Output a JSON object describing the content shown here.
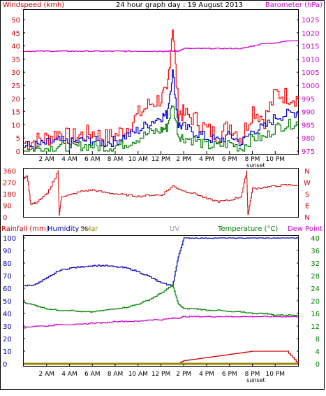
{
  "page_title": "24 hour graph day : 19 August 2013",
  "colors": {
    "wind_avg": "#0000cc",
    "wind_gust": "#ff0000",
    "wind_low": "#008000",
    "barometer": "#cc00cc",
    "direction": "#cc0000",
    "humidity": "#0000aa",
    "temperature": "#008000",
    "dewpoint": "#cc00cc",
    "rainfall": "#cc0000",
    "solar": "#998800",
    "uv": "#999999",
    "frame": "#000000"
  },
  "labels": {
    "windspeed": "Windspeed (kmh)",
    "barometer": "Barometer (hPa)",
    "rainfall": "Rainfall (mm)",
    "humidity": "Humidity %",
    "solar": "Solar",
    "uv": "UV",
    "temperature": "Temperature (°C)",
    "dewpoint": "Dew Point",
    "sunset": "sunset"
  },
  "x_ticks": [
    "2 AM",
    "4 AM",
    "6 AM",
    "8 AM",
    "10 AM",
    "12 PM",
    "2 PM",
    "4 PM",
    "6 PM",
    "8 PM",
    "10 PM"
  ],
  "chart_data": [
    {
      "type": "line",
      "title": "24 hour graph day : 19 August 2013",
      "ylabel": "Windspeed (kmh)",
      "y2label": "Barometer (hPa)",
      "ylim": [
        0,
        50
      ],
      "y2lim": [
        975,
        1025
      ],
      "yticks": [
        0,
        5,
        10,
        15,
        20,
        25,
        30,
        35,
        40,
        45,
        50
      ],
      "y2ticks": [
        975,
        980,
        985,
        990,
        995,
        1000,
        1005,
        1010,
        1015,
        1020,
        1025
      ],
      "x_hours": [
        0,
        1,
        2,
        3,
        4,
        5,
        6,
        7,
        8,
        9,
        10,
        11,
        12,
        12.5,
        13,
        13.5,
        14,
        15,
        16,
        17,
        18,
        19,
        20,
        21,
        22,
        23,
        24
      ],
      "series": [
        {
          "name": "gust",
          "values": [
            3,
            4,
            5,
            7,
            5,
            6,
            7,
            5,
            6,
            9,
            14,
            18,
            20,
            22,
            48,
            15,
            14,
            12,
            8,
            6,
            10,
            5,
            16,
            12,
            22,
            21,
            20
          ]
        },
        {
          "name": "average",
          "values": [
            2,
            2,
            3,
            4,
            3,
            4,
            4,
            3,
            4,
            6,
            8,
            11,
            13,
            14,
            30,
            10,
            9,
            7,
            5,
            4,
            6,
            3,
            8,
            9,
            13,
            14,
            15
          ]
        },
        {
          "name": "low",
          "values": [
            0,
            1,
            1,
            2,
            1,
            2,
            2,
            1,
            2,
            3,
            5,
            7,
            8,
            9,
            18,
            6,
            5,
            4,
            2,
            2,
            3,
            1,
            5,
            5,
            9,
            10,
            11
          ]
        },
        {
          "name": "barometer",
          "values": [
            1013,
            1013,
            1013,
            1013,
            1013,
            1013,
            1013,
            1013,
            1013,
            1013,
            1013,
            1013,
            1013,
            1013,
            1013,
            1013,
            1014,
            1014,
            1014,
            1014,
            1014,
            1014,
            1015,
            1016,
            1016,
            1017,
            1017
          ]
        }
      ]
    },
    {
      "type": "line",
      "ylim": [
        0,
        360
      ],
      "yticks": [
        0,
        90,
        180,
        270,
        360
      ],
      "y2ticks": [
        "N",
        "W",
        "S",
        "E",
        "N"
      ],
      "x_hours": [
        0,
        0.3,
        0.6,
        1,
        2,
        3,
        3.1,
        3.3,
        4,
        5,
        6,
        7,
        8,
        9,
        10,
        11,
        12,
        13,
        14,
        15,
        16,
        17,
        18,
        19,
        19.5,
        19.6,
        20,
        21,
        22,
        23,
        24
      ],
      "series": [
        {
          "name": "wind direction",
          "values": [
            300,
            320,
            100,
            110,
            180,
            360,
            20,
            160,
            170,
            200,
            210,
            190,
            180,
            170,
            160,
            170,
            170,
            240,
            200,
            180,
            140,
            120,
            130,
            160,
            360,
            20,
            220,
            230,
            240,
            250,
            245
          ]
        }
      ]
    },
    {
      "type": "line",
      "ylim": [
        0,
        100
      ],
      "yticks": [
        0,
        10,
        20,
        30,
        40,
        50,
        60,
        70,
        80,
        90,
        100
      ],
      "y2lim": [
        0,
        40
      ],
      "y2ticks": [
        0,
        4,
        8,
        12,
        16,
        20,
        24,
        28,
        32,
        36,
        40
      ],
      "x_hours": [
        0,
        1,
        2,
        3,
        4,
        5,
        6,
        7,
        8,
        9,
        10,
        11,
        12,
        13,
        13.5,
        14,
        15,
        16,
        17,
        18,
        19,
        20,
        21,
        22,
        23,
        24
      ],
      "series": [
        {
          "name": "Humidity",
          "values": [
            62,
            63,
            68,
            74,
            76,
            77,
            78,
            78,
            77,
            76,
            73,
            69,
            64,
            62,
            85,
            100,
            100,
            100,
            100,
            100,
            100,
            100,
            100,
            100,
            100,
            100
          ]
        },
        {
          "name": "Temperature",
          "values": [
            19.5,
            18.5,
            17.5,
            17,
            17,
            16.5,
            16.5,
            17,
            17.5,
            18,
            19,
            20.5,
            22.5,
            25,
            19,
            17.5,
            17.5,
            17,
            17,
            16.5,
            16.5,
            16,
            16,
            15.5,
            15.5,
            15.5
          ]
        },
        {
          "name": "Dew Point",
          "values": [
            11.5,
            12,
            12,
            12.5,
            12.5,
            12.5,
            13,
            13,
            13.5,
            13.5,
            13.5,
            14,
            14,
            14.5,
            14.5,
            15,
            15,
            15,
            15,
            15,
            15,
            15,
            15,
            15,
            15,
            15
          ]
        },
        {
          "name": "Rainfall",
          "values": [
            0,
            0,
            0,
            0,
            0,
            0,
            0,
            0,
            0,
            0,
            0,
            0,
            0,
            0,
            0,
            1,
            1.5,
            2,
            2.5,
            3,
            3.5,
            4,
            4,
            4,
            4,
            0
          ]
        },
        {
          "name": "Solar",
          "values": [
            0,
            0,
            0,
            0,
            0,
            0,
            0,
            0,
            0,
            0,
            0,
            0,
            0,
            0,
            0,
            0,
            0,
            0,
            0,
            0,
            0,
            0,
            0,
            0,
            0,
            0
          ]
        }
      ]
    }
  ]
}
